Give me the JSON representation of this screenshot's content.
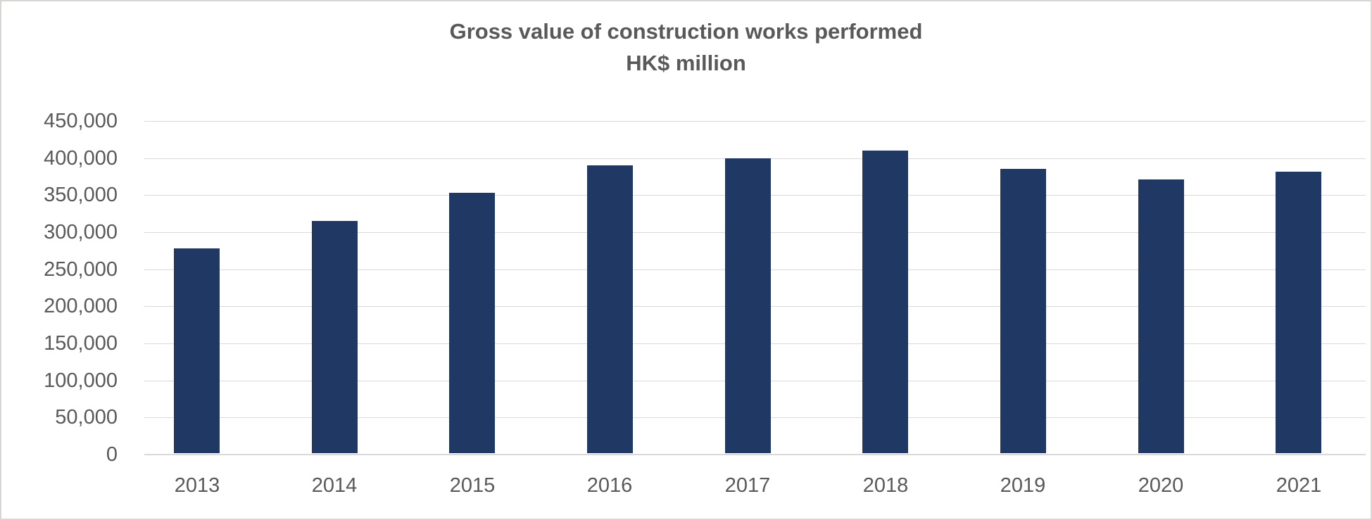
{
  "chart_data": {
    "type": "bar",
    "title": "Gross value of construction works performed",
    "subtitle": "HK$ million",
    "categories": [
      "2013",
      "2014",
      "2015",
      "2016",
      "2017",
      "2018",
      "2019",
      "2020",
      "2021"
    ],
    "values": [
      278000,
      315000,
      353000,
      390000,
      400000,
      410000,
      385000,
      371000,
      382000
    ],
    "xlabel": "",
    "ylabel": "",
    "ylim": [
      0,
      450000
    ],
    "ytick_step": 50000,
    "ytick_labels": [
      "0",
      "50,000",
      "100,000",
      "150,000",
      "200,000",
      "250,000",
      "300,000",
      "350,000",
      "400,000",
      "450,000"
    ],
    "grid": true,
    "legend": false,
    "legend_position": "none",
    "colors": {
      "bar": "#1F3864",
      "gridline": "#D9D9D9",
      "axis_line": "#D9D9D9",
      "text": "#595959",
      "background": "#FFFFFF",
      "border": "#D6D6D3"
    }
  }
}
